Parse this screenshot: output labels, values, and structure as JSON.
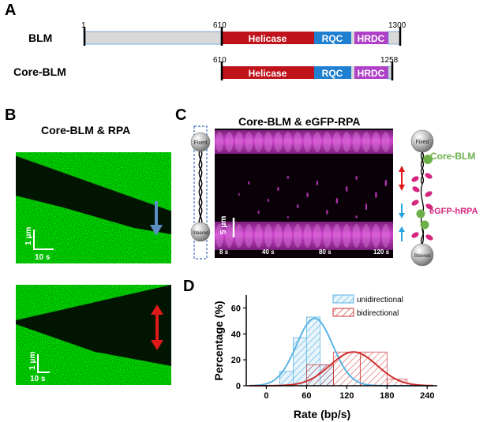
{
  "panels": {
    "a": "A",
    "b": "B",
    "c": "C",
    "d": "D"
  },
  "panel_a": {
    "constructs": [
      {
        "name": "BLM",
        "start": 1,
        "end": 1300,
        "numbers": [
          "1",
          "610",
          "1300"
        ]
      },
      {
        "name": "Core-BLM",
        "start": 610,
        "end": 1258,
        "numbers": [
          "610",
          "1258"
        ]
      }
    ],
    "domains": [
      {
        "label": "Helicase",
        "color": "#c0121b"
      },
      {
        "label": "RQC",
        "color": "#1f7fd0"
      },
      {
        "label": "HRDC",
        "color": "#b040c8"
      }
    ],
    "linker_color": "#d9d9d9"
  },
  "panel_b": {
    "title": "Core-BLM & RPA",
    "top": {
      "scale_y": "1 μm",
      "scale_x": "10 s",
      "arrow_color": "#5b8fc4"
    },
    "bottom": {
      "scale_y": "1 μm",
      "scale_x": "10 s",
      "arrow_color": "#e01a1a"
    }
  },
  "panel_c": {
    "title": "Core-BLM & eGFP-RPA",
    "times": [
      "8 s",
      "40 s",
      "80 s",
      "120 s"
    ],
    "scale": "5 μm",
    "left_beads": {
      "top": "Fixed",
      "bottom": "Steered"
    },
    "right_beads": {
      "top": "Fixed",
      "bottom": "Steered"
    },
    "protein_labels": {
      "blm": "Core-BLM",
      "rpa": "eGFP-hRPA"
    },
    "colors": {
      "blm": "#6db04a",
      "rpa": "#d4267e",
      "kymo": "#c036c0"
    }
  },
  "chart_data": {
    "type": "histogram",
    "xlabel": "Rate (bp/s)",
    "ylabel": "Percentage (%)",
    "xlim": [
      -30,
      255
    ],
    "ylim": [
      0,
      70
    ],
    "xticks": [
      0,
      60,
      120,
      180,
      240
    ],
    "yticks": [
      0,
      20,
      40,
      60
    ],
    "legend_position": "top-right",
    "series": [
      {
        "name": "unidirectional",
        "color": "#5ab4e5",
        "bins": [
          {
            "x0": 20,
            "x1": 40,
            "value": 11
          },
          {
            "x0": 40,
            "x1": 60,
            "value": 37
          },
          {
            "x0": 60,
            "x1": 80,
            "value": 53
          },
          {
            "x0": 80,
            "x1": 100,
            "value": 16
          }
        ],
        "fit": {
          "mean": 72,
          "sd": 27,
          "peak": 52
        }
      },
      {
        "name": "bidirectional",
        "color": "#d03030",
        "bins": [
          {
            "x0": 60,
            "x1": 100,
            "value": 16
          },
          {
            "x0": 100,
            "x1": 140,
            "value": 26
          },
          {
            "x0": 140,
            "x1": 180,
            "value": 26
          },
          {
            "x0": 180,
            "x1": 210,
            "value": 5
          }
        ],
        "fit": {
          "mean": 130,
          "sd": 35,
          "peak": 26
        }
      }
    ]
  }
}
